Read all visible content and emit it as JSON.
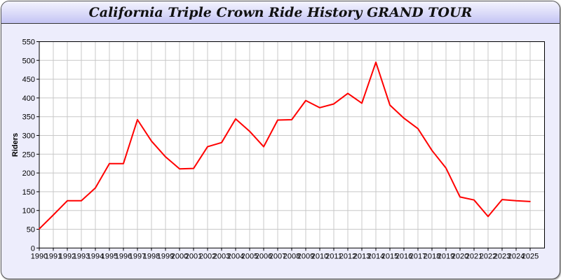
{
  "chart_data": {
    "type": "line",
    "title": "California Triple Crown Ride History GRAND TOUR",
    "xlabel": "",
    "ylabel": "Riders",
    "ylim": [
      0,
      550
    ],
    "yticks": [
      0,
      50,
      100,
      150,
      200,
      250,
      300,
      350,
      400,
      450,
      500,
      550
    ],
    "grid": true,
    "x": [
      "1990",
      "1991",
      "1992",
      "1993",
      "1994",
      "1995",
      "1996",
      "1997",
      "1998",
      "1999",
      "2000",
      "2001",
      "2002",
      "2003",
      "2004",
      "2005",
      "2006",
      "2007",
      "2008",
      "2009",
      "2010",
      "2011",
      "2012",
      "2013",
      "2014",
      "2015",
      "2016",
      "2017",
      "2018",
      "2019",
      "2020",
      "2021",
      "2022",
      "2023",
      "2024",
      "2025"
    ],
    "series": [
      {
        "color": "#ff0000",
        "values": [
          51,
          88,
          126,
          126,
          160,
          225,
          225,
          342,
          285,
          243,
          211,
          212,
          270,
          281,
          344,
          311,
          270,
          341,
          342,
          393,
          374,
          384,
          412,
          386,
          495,
          381,
          346,
          318,
          260,
          213,
          136,
          128,
          84,
          129,
          126,
          124
        ]
      }
    ]
  }
}
